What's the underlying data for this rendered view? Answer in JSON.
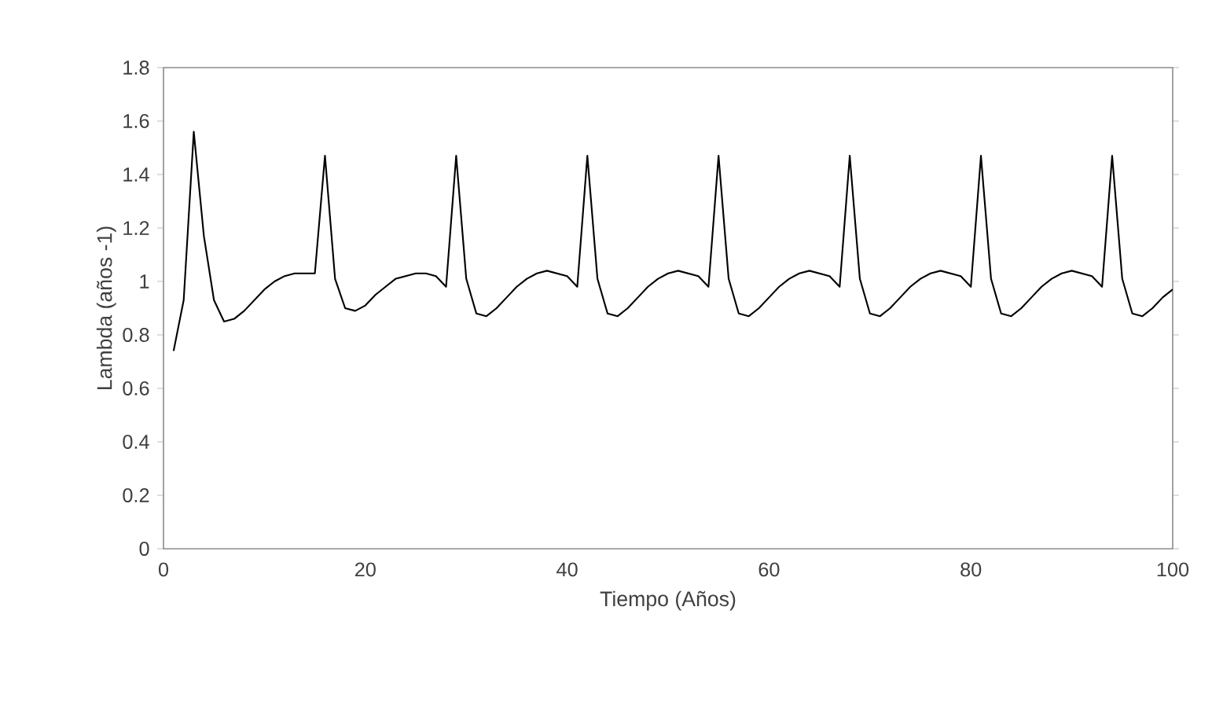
{
  "chart_data": {
    "type": "line",
    "xlabel": "Tiempo (Años)",
    "ylabel": "Lambda (años -1)",
    "x": [
      1,
      2,
      3,
      4,
      5,
      6,
      7,
      8,
      9,
      10,
      11,
      12,
      13,
      14,
      15,
      16,
      17,
      18,
      19,
      20,
      21,
      22,
      23,
      24,
      25,
      26,
      27,
      28,
      29,
      30,
      31,
      32,
      33,
      34,
      35,
      36,
      37,
      38,
      39,
      40,
      41,
      42,
      43,
      44,
      45,
      46,
      47,
      48,
      49,
      50,
      51,
      52,
      53,
      54,
      55,
      56,
      57,
      58,
      59,
      60,
      61,
      62,
      63,
      64,
      65,
      66,
      67,
      68,
      69,
      70,
      71,
      72,
      73,
      74,
      75,
      76,
      77,
      78,
      79,
      80,
      81,
      82,
      83,
      84,
      85,
      86,
      87,
      88,
      89,
      90,
      91,
      92,
      93,
      94,
      95,
      96,
      97,
      98,
      99,
      100
    ],
    "values": [
      0.74,
      0.93,
      1.56,
      1.17,
      0.93,
      0.85,
      0.86,
      0.89,
      0.93,
      0.97,
      1.0,
      1.02,
      1.03,
      1.03,
      1.03,
      1.47,
      1.01,
      0.9,
      0.89,
      0.91,
      0.95,
      0.98,
      1.01,
      1.02,
      1.03,
      1.03,
      1.02,
      0.98,
      1.47,
      1.01,
      0.88,
      0.87,
      0.9,
      0.94,
      0.98,
      1.01,
      1.03,
      1.04,
      1.03,
      1.02,
      0.98,
      1.47,
      1.01,
      0.88,
      0.87,
      0.9,
      0.94,
      0.98,
      1.01,
      1.03,
      1.04,
      1.03,
      1.02,
      0.98,
      1.47,
      1.01,
      0.88,
      0.87,
      0.9,
      0.94,
      0.98,
      1.01,
      1.03,
      1.04,
      1.03,
      1.02,
      0.98,
      1.47,
      1.01,
      0.88,
      0.87,
      0.9,
      0.94,
      0.98,
      1.01,
      1.03,
      1.04,
      1.03,
      1.02,
      0.98,
      1.47,
      1.01,
      0.88,
      0.87,
      0.9,
      0.94,
      0.98,
      1.01,
      1.03,
      1.04,
      1.03,
      1.02,
      0.98,
      1.47,
      1.01,
      0.88,
      0.87,
      0.9,
      0.94,
      0.97
    ],
    "color": "#000000",
    "xlim": [
      0,
      100
    ],
    "ylim": [
      0,
      1.8
    ],
    "xticks": [
      0,
      20,
      40,
      60,
      80,
      100
    ],
    "yticks": [
      0,
      0.2,
      0.4,
      0.6,
      0.8,
      1,
      1.2,
      1.4,
      1.6,
      1.8
    ]
  }
}
